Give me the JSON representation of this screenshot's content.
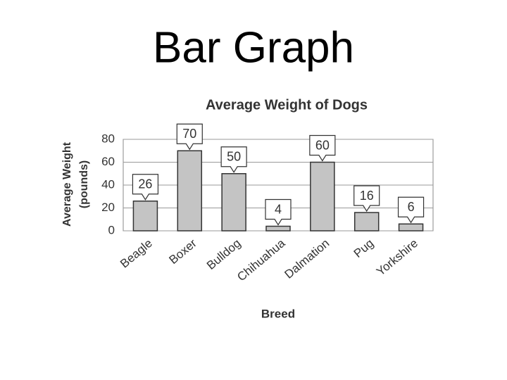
{
  "slide_title": "Bar Graph",
  "chart_data": {
    "type": "bar",
    "title": "Average Weight of Dogs",
    "x_label": "Breed",
    "y_label": [
      "Average Weight",
      "(pounds)"
    ],
    "categories": [
      "Beagle",
      "Boxer",
      "Bulldog",
      "Chihuahua",
      "Dalmation",
      "Pug",
      "Yorkshire"
    ],
    "values": [
      26,
      70,
      50,
      4,
      60,
      16,
      6
    ],
    "color": "#c4c4c4",
    "ylim": [
      0,
      80
    ],
    "yticks": [
      0,
      20,
      40,
      60,
      80
    ],
    "grid": true
  }
}
